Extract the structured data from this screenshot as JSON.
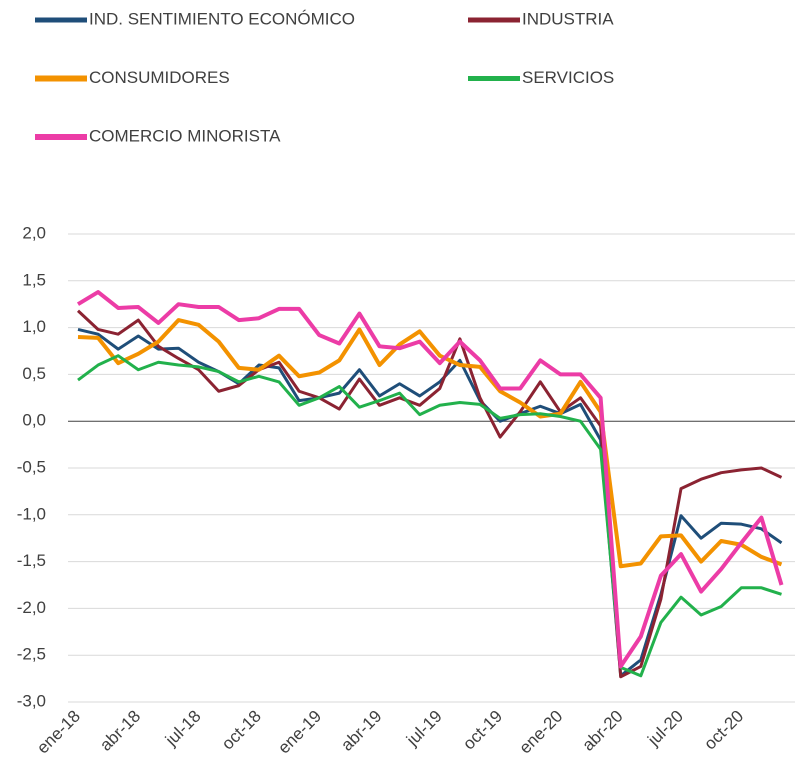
{
  "chart_data": {
    "type": "line",
    "categories": [
      "ene-18",
      null,
      null,
      "abr-18",
      null,
      null,
      "jul-18",
      null,
      null,
      "oct-18",
      null,
      null,
      "ene-19",
      null,
      null,
      "abr-19",
      null,
      null,
      "jul-19",
      null,
      null,
      "oct-19",
      null,
      null,
      "ene-20",
      null,
      null,
      "abr-20",
      null,
      null,
      "jul-20",
      null,
      null,
      "oct-20",
      null,
      null
    ],
    "series": [
      {
        "name": "IND. SENTIMIENTO ECONÓMICO",
        "color": "#1f4e79",
        "width": 3,
        "values": [
          0.98,
          0.93,
          0.77,
          0.91,
          0.77,
          0.78,
          0.63,
          0.53,
          0.4,
          0.6,
          0.57,
          0.22,
          0.25,
          0.3,
          0.55,
          0.27,
          0.4,
          0.27,
          0.42,
          0.65,
          0.22,
          0.0,
          0.08,
          0.16,
          0.08,
          0.18,
          -0.2,
          -2.72,
          -2.55,
          -1.85,
          -1.01,
          -1.25,
          -1.09,
          -1.1,
          -1.15,
          -1.3
        ]
      },
      {
        "name": "INDUSTRIA",
        "color": "#8b2332",
        "width": 3,
        "values": [
          1.18,
          0.98,
          0.93,
          1.08,
          0.8,
          0.67,
          0.55,
          0.32,
          0.38,
          0.55,
          0.63,
          0.32,
          0.25,
          0.13,
          0.45,
          0.17,
          0.25,
          0.17,
          0.35,
          0.88,
          0.25,
          -0.17,
          0.1,
          0.42,
          0.1,
          0.25,
          -0.05,
          -2.73,
          -2.62,
          -1.9,
          -0.72,
          -0.62,
          -0.55,
          -0.52,
          -0.5,
          -0.6
        ]
      },
      {
        "name": "CONSUMIDORES",
        "color": "#f39200",
        "width": 4,
        "values": [
          0.9,
          0.89,
          0.62,
          0.72,
          0.85,
          1.08,
          1.03,
          0.85,
          0.57,
          0.55,
          0.7,
          0.48,
          0.52,
          0.65,
          0.98,
          0.6,
          0.82,
          0.96,
          0.7,
          0.6,
          0.58,
          0.32,
          0.2,
          0.05,
          0.08,
          0.42,
          0.1,
          -1.55,
          -1.52,
          -1.23,
          -1.22,
          -1.5,
          -1.28,
          -1.32,
          -1.45,
          -1.53
        ]
      },
      {
        "name": "SERVICIOS",
        "color": "#22b14c",
        "width": 3,
        "values": [
          0.44,
          0.6,
          0.7,
          0.55,
          0.63,
          0.6,
          0.58,
          0.53,
          0.42,
          0.48,
          0.42,
          0.17,
          0.25,
          0.37,
          0.15,
          0.22,
          0.3,
          0.07,
          0.17,
          0.2,
          0.18,
          0.03,
          0.07,
          0.08,
          0.05,
          0.0,
          -0.3,
          -2.63,
          -2.72,
          -2.15,
          -1.88,
          -2.07,
          -1.98,
          -1.78,
          -1.78,
          -1.85
        ]
      },
      {
        "name": "COMERCIO MINORISTA",
        "color": "#ec3ca6",
        "width": 4,
        "values": [
          1.25,
          1.38,
          1.21,
          1.22,
          1.05,
          1.25,
          1.22,
          1.22,
          1.08,
          1.1,
          1.2,
          1.2,
          0.92,
          0.83,
          1.15,
          0.8,
          0.78,
          0.85,
          0.62,
          0.85,
          0.65,
          0.35,
          0.35,
          0.65,
          0.5,
          0.5,
          0.25,
          -2.62,
          -2.3,
          -1.65,
          -1.42,
          -1.82,
          -1.58,
          -1.3,
          -1.03,
          -1.75
        ]
      }
    ],
    "ylim": [
      -3,
      2
    ],
    "yticks": [
      {
        "value": -3,
        "label": "-3,0"
      },
      {
        "value": -2.5,
        "label": "-2,5"
      },
      {
        "value": -2,
        "label": "-2,0"
      },
      {
        "value": -1.5,
        "label": "-1,5"
      },
      {
        "value": -1,
        "label": "-1,0"
      },
      {
        "value": -0.5,
        "label": "-0,5"
      },
      {
        "value": 0,
        "label": "0,0"
      },
      {
        "value": 0.5,
        "label": "0,5"
      },
      {
        "value": 1,
        "label": "1,0"
      },
      {
        "value": 1.5,
        "label": "1,5"
      },
      {
        "value": 2,
        "label": "2,0"
      }
    ],
    "grid": true
  }
}
